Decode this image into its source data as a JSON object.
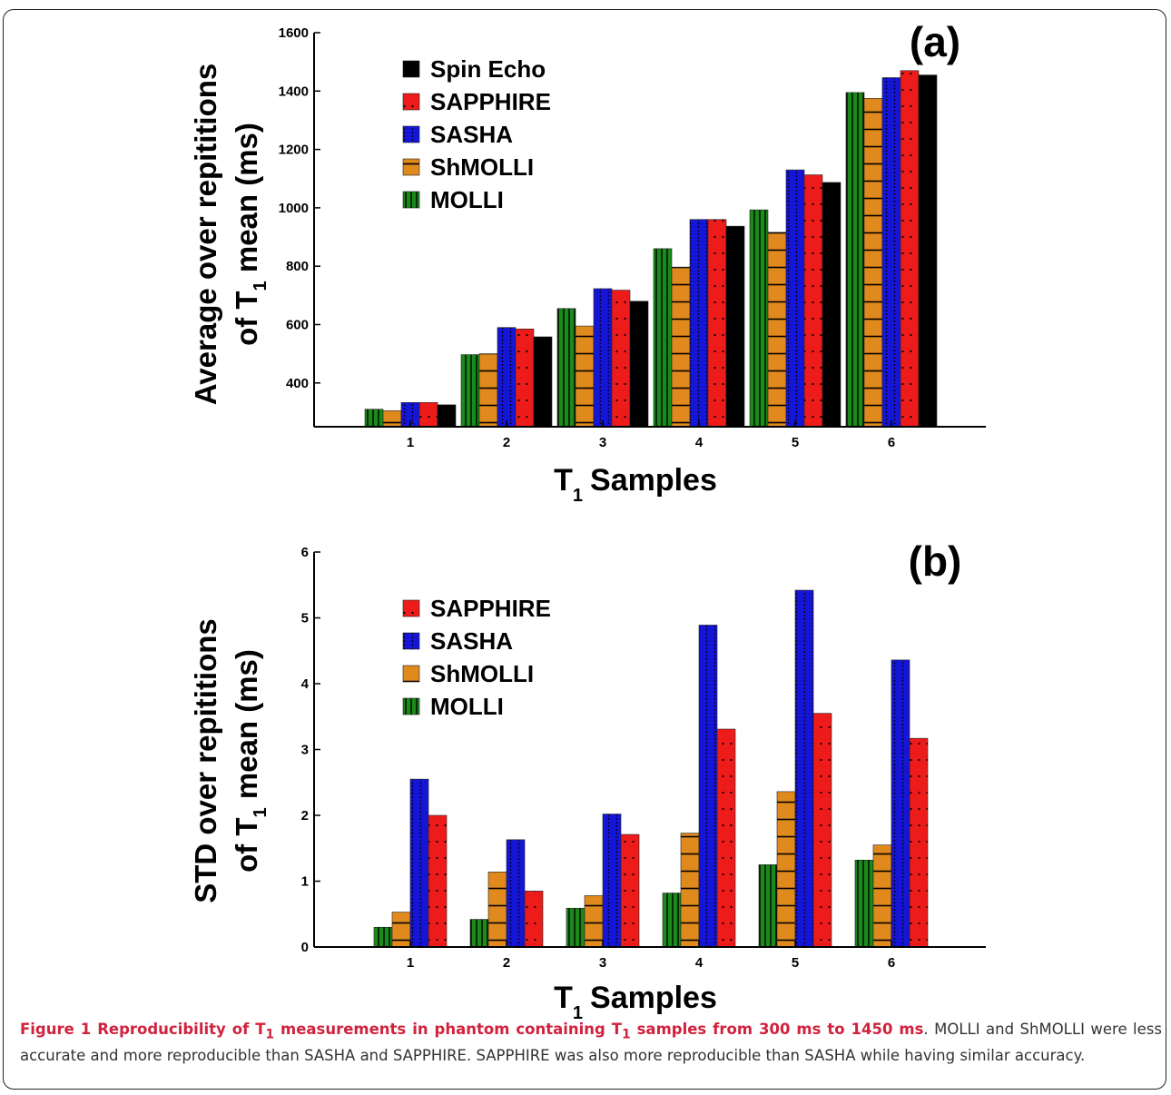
{
  "chart_data": [
    {
      "type": "bar",
      "panel_label": "(a)",
      "categories": [
        "1",
        "2",
        "3",
        "4",
        "5",
        "6"
      ],
      "xlabel": "T",
      "xlabel_sub": "1",
      "xlabel_rest": "Samples",
      "ylabel_line1": "Average over repititions",
      "ylabel_line2_pre": "of T",
      "ylabel_line2_sub": "1",
      "ylabel_line2_post": " mean (ms)",
      "ylim": [
        250,
        1600
      ],
      "yticks": [
        "400",
        "600",
        "800",
        "1000",
        "1200",
        "1400",
        "1600"
      ],
      "ytick_values": [
        400,
        600,
        800,
        1000,
        1200,
        1400,
        1600
      ],
      "legend_position": "top-left",
      "series": [
        {
          "name": "MOLLI",
          "color": "#1a8a1a",
          "pattern": "vert",
          "values": [
            310,
            497,
            655,
            860,
            993,
            1395
          ]
        },
        {
          "name": "ShMOLLI",
          "color": "#e08a1e",
          "pattern": "horiz",
          "values": [
            305,
            500,
            595,
            797,
            916,
            1375
          ]
        },
        {
          "name": "SASHA",
          "color": "#1515d8",
          "pattern": "vdots",
          "values": [
            333,
            590,
            723,
            960,
            1130,
            1446
          ]
        },
        {
          "name": "SAPPHIRE",
          "color": "#ee1b1b",
          "pattern": "dots",
          "values": [
            333,
            585,
            718,
            960,
            1113,
            1470
          ]
        },
        {
          "name": "Spin Echo",
          "color": "#000000",
          "pattern": "none",
          "values": [
            325,
            558,
            680,
            937,
            1087,
            1455
          ]
        }
      ],
      "legend_order": [
        "Spin Echo",
        "SAPPHIRE",
        "SASHA",
        "ShMOLLI",
        "MOLLI"
      ]
    },
    {
      "type": "bar",
      "panel_label": "(b)",
      "categories": [
        "1",
        "2",
        "3",
        "4",
        "5",
        "6"
      ],
      "xlabel": "T",
      "xlabel_sub": "1",
      "xlabel_rest": "Samples",
      "ylabel_line1": "STD over repititions",
      "ylabel_line2_pre": "of T",
      "ylabel_line2_sub": "1",
      "ylabel_line2_post": " mean (ms)",
      "ylim": [
        0,
        6
      ],
      "yticks": [
        "0",
        "1",
        "2",
        "3",
        "4",
        "5",
        "6"
      ],
      "ytick_values": [
        0,
        1,
        2,
        3,
        4,
        5,
        6
      ],
      "legend_position": "top-left",
      "series": [
        {
          "name": "MOLLI",
          "color": "#1a8a1a",
          "pattern": "vert",
          "values": [
            0.3,
            0.42,
            0.59,
            0.82,
            1.25,
            1.32
          ]
        },
        {
          "name": "ShMOLLI",
          "color": "#e08a1e",
          "pattern": "horiz",
          "values": [
            0.53,
            1.14,
            0.78,
            1.73,
            2.36,
            1.55
          ]
        },
        {
          "name": "SASHA",
          "color": "#1515d8",
          "pattern": "vdots",
          "values": [
            2.55,
            1.63,
            2.02,
            4.89,
            5.42,
            4.36
          ]
        },
        {
          "name": "SAPPHIRE",
          "color": "#ee1b1b",
          "pattern": "dots",
          "values": [
            2.0,
            0.85,
            1.71,
            3.31,
            3.55,
            3.17
          ]
        }
      ],
      "legend_order": [
        "SAPPHIRE",
        "SASHA",
        "ShMOLLI",
        "MOLLI"
      ]
    }
  ],
  "caption": {
    "lead_pre": "Figure 1 Reproducibility of T",
    "lead_sub1": "1",
    "lead_mid": " measurements in phantom containing T",
    "lead_sub2": "1",
    "lead_post": " samples from 300 ms to 1450 ms",
    "body": ". MOLLI and ShMOLLI were less accurate and more reproducible than SASHA and SAPPHIRE. SAPPHIRE was also more reproducible than SASHA while having similar accuracy."
  }
}
